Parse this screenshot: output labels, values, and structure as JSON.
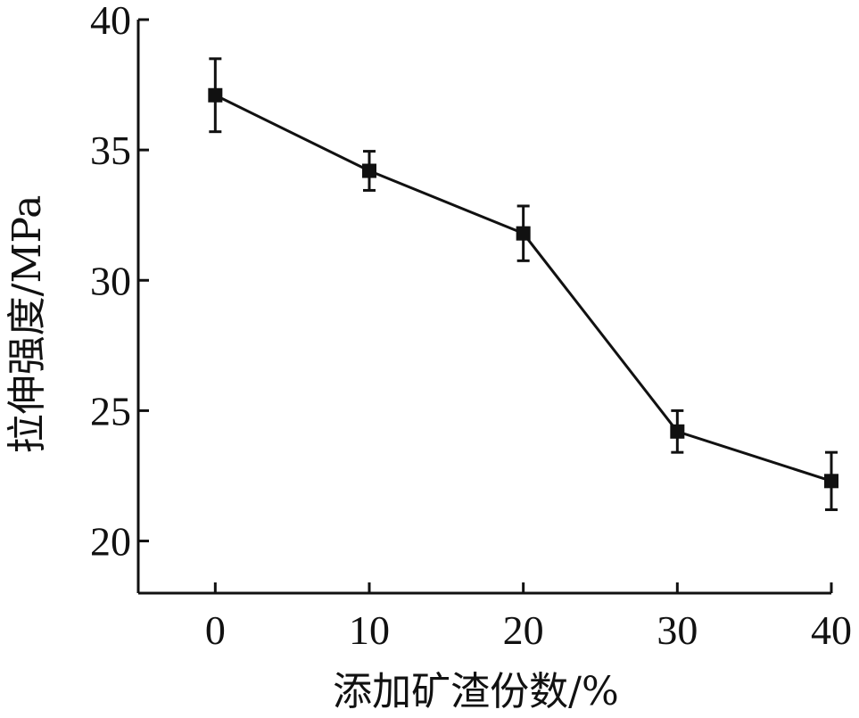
{
  "chart_data": {
    "type": "line",
    "xlabel": "添加矿渣份数/%",
    "ylabel": "拉伸强度/MPa",
    "x": [
      0,
      10,
      20,
      30,
      40
    ],
    "series": [
      {
        "values": [
          37.1,
          34.2,
          31.8,
          24.2,
          22.3
        ],
        "error": [
          1.4,
          0.75,
          1.05,
          0.8,
          1.1
        ]
      }
    ],
    "xlim": [
      -5,
      40
    ],
    "ylim": [
      18,
      40
    ],
    "xticks": [
      "0",
      "10",
      "20",
      "30",
      "40"
    ],
    "yticks": [
      "20",
      "25",
      "30",
      "35",
      "40"
    ],
    "marker": "square",
    "grid": false,
    "colors": {
      "line": "#111111",
      "marker": "#111111"
    }
  }
}
